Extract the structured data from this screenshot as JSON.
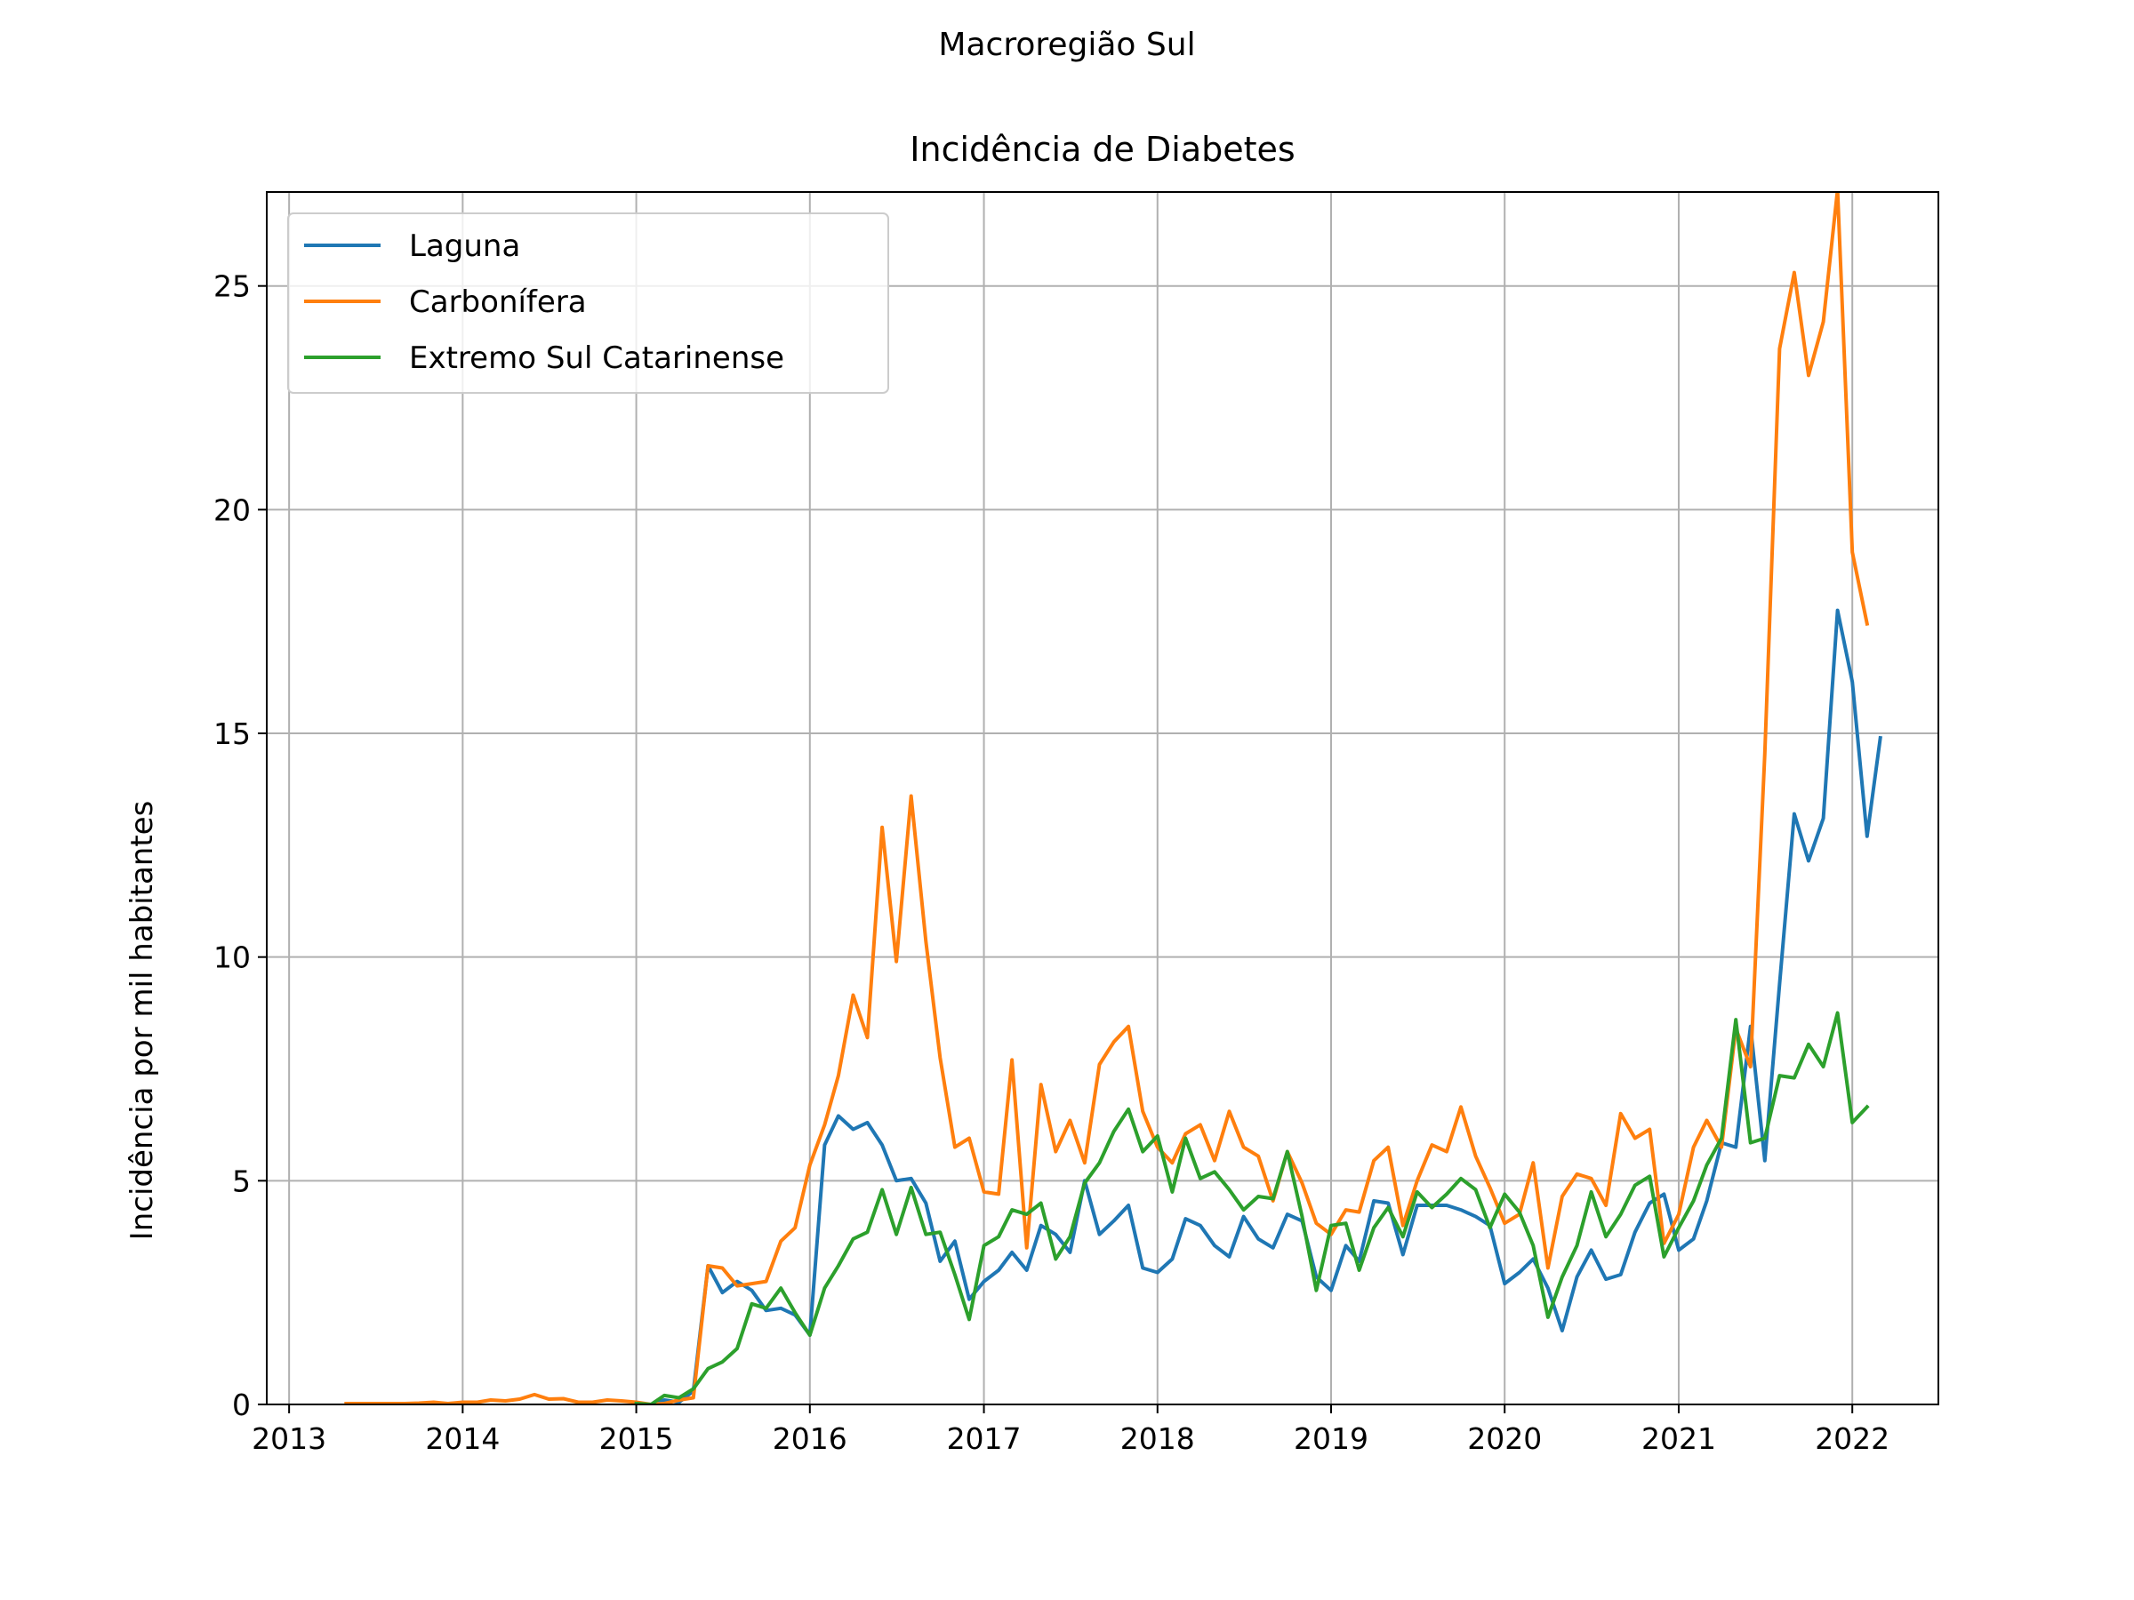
{
  "suptitle": "Macroregião Sul",
  "colors": {
    "laguna": "#1f77b4",
    "carbonifera": "#ff7f0e",
    "extremo": "#2ca02c",
    "grid": "#b0b0b0"
  },
  "chart_data": {
    "type": "line",
    "title": "Incidência de Diabetes",
    "xlabel": "",
    "ylabel": "Incidência por mil habitantes",
    "xlim": [
      "2012-11-15",
      "2022-07-01"
    ],
    "ylim": [
      0,
      27.1
    ],
    "grid": true,
    "legend_position": "upper-left",
    "x_ticks": [
      {
        "date": "2013-01-01",
        "label": "2013"
      },
      {
        "date": "2014-01-01",
        "label": "2014"
      },
      {
        "date": "2015-01-01",
        "label": "2015"
      },
      {
        "date": "2016-01-01",
        "label": "2016"
      },
      {
        "date": "2017-01-01",
        "label": "2017"
      },
      {
        "date": "2018-01-01",
        "label": "2018"
      },
      {
        "date": "2019-01-01",
        "label": "2019"
      },
      {
        "date": "2020-01-01",
        "label": "2020"
      },
      {
        "date": "2021-01-01",
        "label": "2021"
      },
      {
        "date": "2022-01-01",
        "label": "2022"
      }
    ],
    "y_ticks": [
      {
        "value": 0,
        "label": "0"
      },
      {
        "value": 5,
        "label": "5"
      },
      {
        "value": 10,
        "label": "10"
      },
      {
        "value": 15,
        "label": "15"
      },
      {
        "value": 20,
        "label": "20"
      },
      {
        "value": 25,
        "label": "25"
      }
    ],
    "series": [
      {
        "name": "Laguna",
        "color": "#1f77b4",
        "start": "2015-01",
        "values": [
          0.0,
          0.0,
          0.1,
          0.05,
          0.3,
          3.1,
          2.5,
          2.75,
          2.55,
          2.1,
          2.15,
          2.0,
          1.55,
          5.8,
          6.45,
          6.15,
          6.3,
          5.8,
          5.0,
          5.05,
          4.5,
          3.2,
          3.65,
          2.35,
          2.75,
          3.0,
          3.4,
          3.0,
          4.0,
          3.8,
          3.4,
          5.0,
          3.8,
          4.1,
          4.45,
          3.05,
          2.95,
          3.25,
          4.15,
          4.0,
          3.55,
          3.3,
          4.2,
          3.7,
          3.5,
          4.25,
          4.1,
          2.85,
          2.55,
          3.55,
          3.2,
          4.55,
          4.5,
          3.35,
          4.45,
          4.45,
          4.45,
          4.35,
          4.2,
          4.0,
          2.7,
          2.95,
          3.25,
          2.6,
          1.65,
          2.85,
          3.45,
          2.8,
          2.9,
          3.85,
          4.5,
          4.7,
          3.45,
          3.7,
          4.55,
          5.85,
          5.75,
          8.45,
          5.45,
          9.4,
          13.2,
          12.15,
          13.1,
          17.75,
          16.15,
          12.7,
          14.9
        ]
      },
      {
        "name": "Carbonífera",
        "color": "#ff7f0e",
        "start": "2013-05",
        "values": [
          0.02,
          0.02,
          0.02,
          0.02,
          0.02,
          0.03,
          0.05,
          0.02,
          0.05,
          0.05,
          0.1,
          0.08,
          0.12,
          0.22,
          0.12,
          0.13,
          0.05,
          0.05,
          0.1,
          0.08,
          0.05,
          0.0,
          0.02,
          0.1,
          0.15,
          3.1,
          3.05,
          2.65,
          2.7,
          2.75,
          3.65,
          3.95,
          5.35,
          6.25,
          7.35,
          9.15,
          8.2,
          12.9,
          9.9,
          13.6,
          10.35,
          7.75,
          5.75,
          5.95,
          4.75,
          4.7,
          7.7,
          3.5,
          7.15,
          5.65,
          6.35,
          5.4,
          7.6,
          8.1,
          8.45,
          6.55,
          5.75,
          5.4,
          6.05,
          6.25,
          5.45,
          6.55,
          5.75,
          5.55,
          4.55,
          5.65,
          4.95,
          4.05,
          3.8,
          4.35,
          4.3,
          5.45,
          5.75,
          4.0,
          5.0,
          5.8,
          5.65,
          6.65,
          5.55,
          4.85,
          4.05,
          4.25,
          5.4,
          3.05,
          4.65,
          5.15,
          5.05,
          4.45,
          6.5,
          5.95,
          6.15,
          3.6,
          4.25,
          5.75,
          6.35,
          5.75,
          8.4,
          7.55,
          14.55,
          23.6,
          25.3,
          23.0,
          24.2,
          27.15,
          19.05,
          17.45
        ]
      },
      {
        "name": "Extremo Sul Catarinense",
        "color": "#2ca02c",
        "start": "2015-01",
        "values": [
          0.02,
          0.0,
          0.2,
          0.15,
          0.35,
          0.8,
          0.95,
          1.25,
          2.25,
          2.15,
          2.6,
          2.05,
          1.55,
          2.6,
          3.1,
          3.7,
          3.85,
          4.8,
          3.8,
          4.85,
          3.8,
          3.85,
          2.9,
          1.9,
          3.55,
          3.75,
          4.35,
          4.25,
          4.5,
          3.25,
          3.75,
          4.95,
          5.4,
          6.1,
          6.6,
          5.65,
          6.0,
          4.75,
          5.95,
          5.05,
          5.2,
          4.8,
          4.35,
          4.65,
          4.6,
          5.65,
          4.2,
          2.55,
          4.0,
          4.05,
          3.0,
          3.95,
          4.4,
          3.75,
          4.75,
          4.4,
          4.7,
          5.05,
          4.8,
          3.95,
          4.7,
          4.3,
          3.55,
          1.95,
          2.85,
          3.55,
          4.75,
          3.75,
          4.25,
          4.9,
          5.1,
          3.3,
          3.95,
          4.55,
          5.35,
          5.95,
          8.6,
          5.85,
          5.95,
          7.35,
          7.3,
          8.05,
          7.55,
          8.75,
          6.3,
          6.65
        ]
      }
    ]
  }
}
